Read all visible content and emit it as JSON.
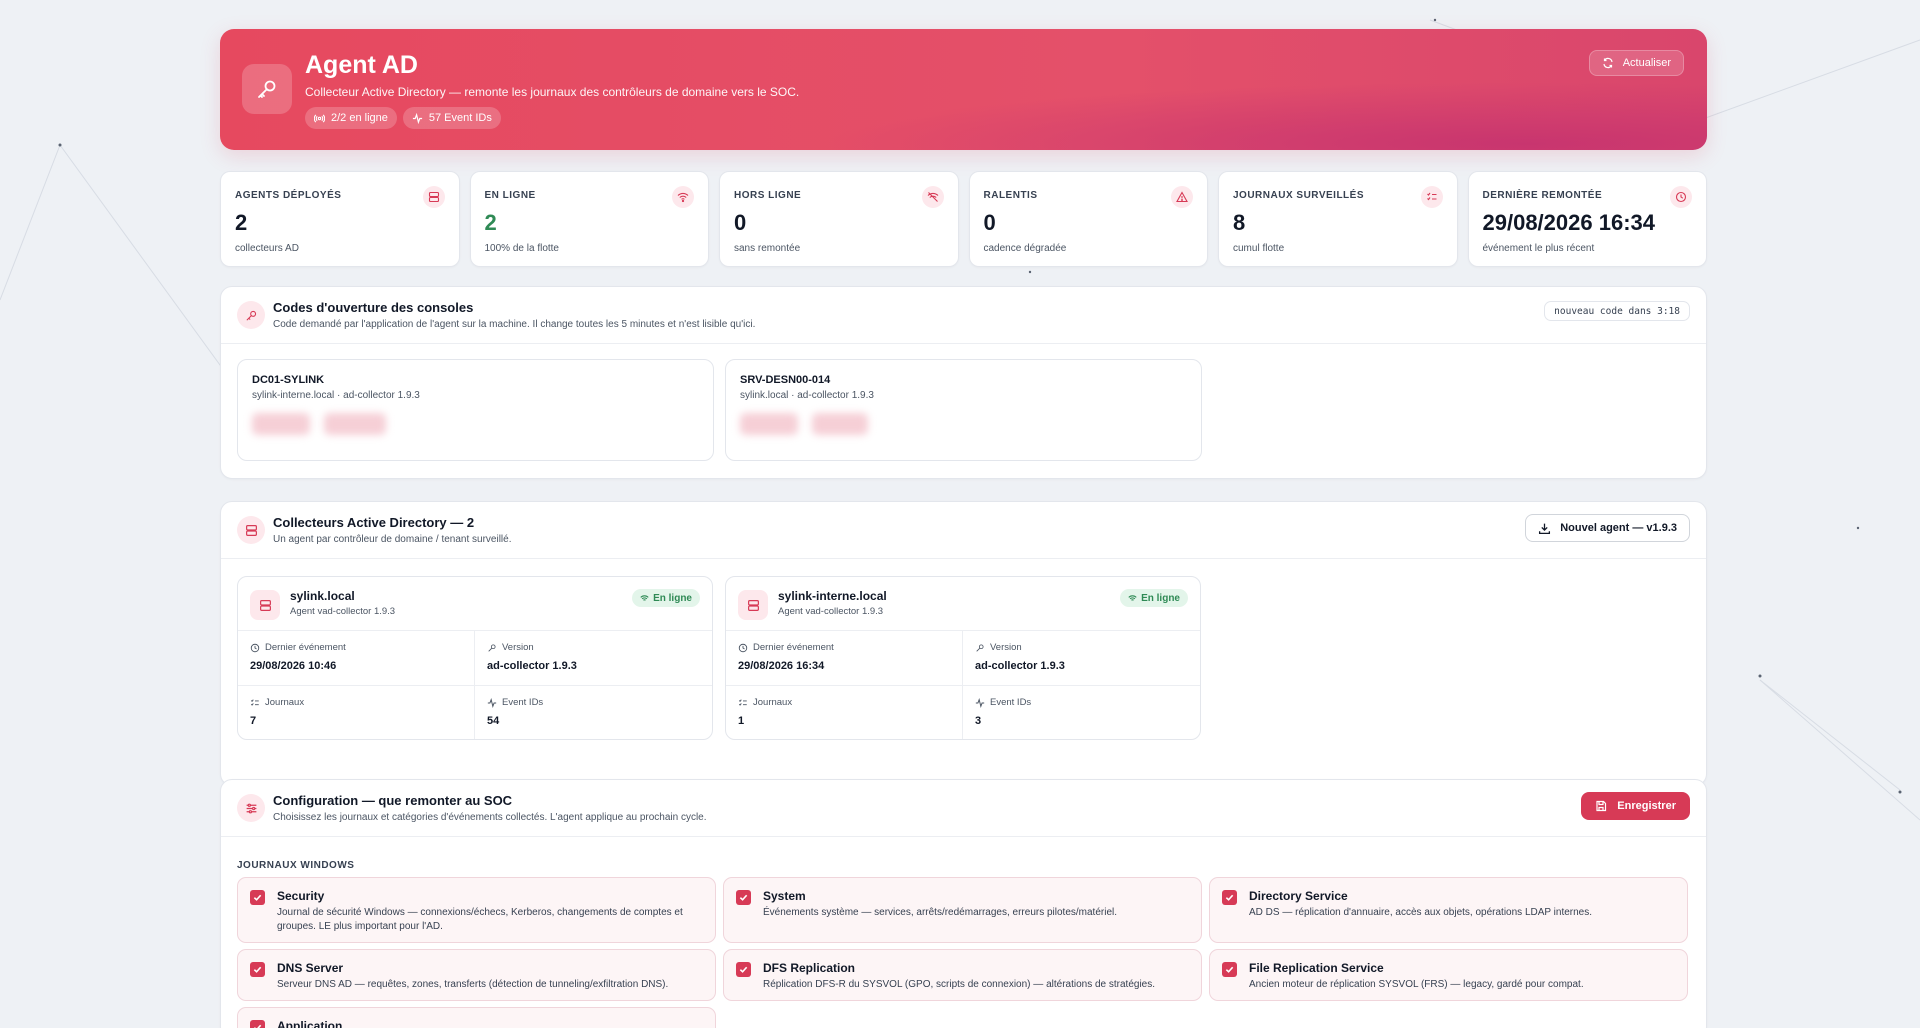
{
  "header": {
    "title": "Agent AD",
    "subtitle": "Collecteur Active Directory — remonte les journaux des contrôleurs de domaine vers le SOC.",
    "pills": [
      "2/2 en ligne",
      "57 Event IDs"
    ],
    "refresh_label": "Actualiser"
  },
  "stats": [
    {
      "label": "Agents déployés",
      "value": "2",
      "sub": "collecteurs AD",
      "icon": "server-icon"
    },
    {
      "label": "En ligne",
      "value": "2",
      "sub": "100% de la flotte",
      "icon": "wifi-icon"
    },
    {
      "label": "Hors ligne",
      "value": "0",
      "sub": "sans remontée",
      "icon": "wifi-off-icon"
    },
    {
      "label": "Ralentis",
      "value": "0",
      "sub": "cadence dégradée",
      "icon": "warning-icon"
    },
    {
      "label": "Journaux surveillés",
      "value": "8",
      "sub": "cumul flotte",
      "icon": "list-check-icon"
    },
    {
      "label": "Dernière remontée",
      "value": "29/08/2026 16:34",
      "sub": "événement le plus récent",
      "icon": "clock-icon"
    }
  ],
  "codes": {
    "title": "Codes d'ouverture des consoles",
    "subtitle": "Code demandé par l'application de l'agent sur la machine. Il change toutes les 5 minutes et n'est lisible qu'ici.",
    "timer": "nouveau code dans 3:18",
    "cards": [
      {
        "host": "DC01-SYLINK",
        "meta": "sylink-interne.local · ad-collector 1.9.3"
      },
      {
        "host": "SRV-DESN00-014",
        "meta": "sylink.local · ad-collector 1.9.3"
      }
    ]
  },
  "collectors": {
    "title": "Collecteurs Active Directory — 2",
    "subtitle": "Un agent par contrôleur de domaine / tenant surveillé.",
    "new_agent_label": "Nouvel agent — v1.9.3",
    "labels": {
      "last_event": "Dernier événement",
      "version": "Version",
      "logs": "Journaux",
      "event_ids": "Event IDs"
    },
    "items": [
      {
        "domain": "sylink.local",
        "agent": "Agent vad-collector 1.9.3",
        "status": "En ligne",
        "last_event": "29/08/2026 10:46",
        "version": "ad-collector 1.9.3",
        "logs": "7",
        "event_ids": "54"
      },
      {
        "domain": "sylink-interne.local",
        "agent": "Agent vad-collector 1.9.3",
        "status": "En ligne",
        "last_event": "29/08/2026 16:34",
        "version": "ad-collector 1.9.3",
        "logs": "1",
        "event_ids": "3"
      }
    ]
  },
  "config": {
    "title": "Configuration — que remonter au SOC",
    "subtitle": "Choisissez les journaux et catégories d'événements collectés. L'agent applique au prochain cycle.",
    "save_label": "Enregistrer",
    "section_label": "JOURNAUX WINDOWS",
    "options": [
      {
        "title": "Security",
        "desc": "Journal de sécurité Windows — connexions/échecs, Kerberos, changements de comptes et groupes. LE plus important pour l'AD.",
        "checked": true
      },
      {
        "title": "System",
        "desc": "Événements système — services, arrêts/redémarrages, erreurs pilotes/matériel.",
        "checked": true
      },
      {
        "title": "Directory Service",
        "desc": "AD DS — réplication d'annuaire, accès aux objets, opérations LDAP internes.",
        "checked": true
      },
      {
        "title": "DNS Server",
        "desc": "Serveur DNS AD — requêtes, zones, transferts (détection de tunneling/exfiltration DNS).",
        "checked": true
      },
      {
        "title": "DFS Replication",
        "desc": "Réplication DFS-R du SYSVOL (GPO, scripts de connexion) — altérations de stratégies.",
        "checked": true
      },
      {
        "title": "File Replication Service",
        "desc": "Ancien moteur de réplication SYSVOL (FRS) — legacy, gardé pour compat.",
        "checked": true
      },
      {
        "title": "Application",
        "desc": "",
        "checked": true
      }
    ]
  },
  "colors": {
    "accent": "#d73a56",
    "hero_start": "#e6495f",
    "hero_end": "#c8356f",
    "online_green": "#2f8a55"
  }
}
